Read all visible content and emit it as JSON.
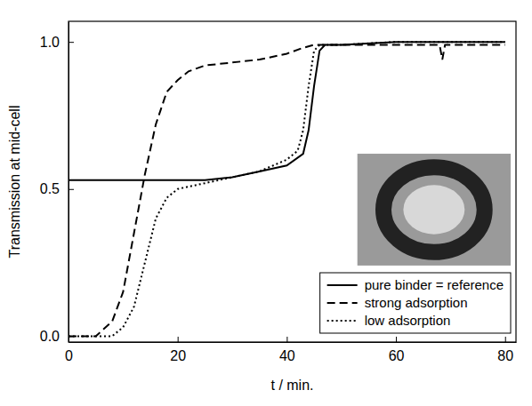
{
  "chart_data": {
    "type": "line",
    "x_label": "t / min.",
    "y_label": "Transmission at mid-cell",
    "xlim": [
      0,
      82
    ],
    "ylim": [
      -0.02,
      1.07
    ],
    "xticks": [
      0,
      20,
      40,
      60,
      80
    ],
    "yticks": [
      {
        "value": 0,
        "label": "0.0"
      },
      {
        "value": 0.5,
        "label": "0.5"
      },
      {
        "value": 1,
        "label": "1.0"
      }
    ],
    "grid": false,
    "legend": "lower right",
    "series": [
      {
        "name": "pure binder = reference",
        "color": "#000000",
        "line_style": "solid",
        "x": [
          0,
          10,
          20,
          25,
          30,
          35,
          40,
          43,
          44,
          45,
          46,
          47,
          50,
          60,
          70,
          80
        ],
        "values": [
          0.53,
          0.53,
          0.53,
          0.53,
          0.54,
          0.56,
          0.58,
          0.62,
          0.7,
          0.85,
          0.97,
          0.99,
          0.99,
          1.0,
          1.0,
          1.0
        ]
      },
      {
        "name": "strong adsorption",
        "color": "#000000",
        "line_style": "dashed",
        "x": [
          0,
          5,
          8,
          10,
          12,
          14,
          16,
          18,
          20,
          22,
          25,
          30,
          35,
          40,
          43,
          45,
          50,
          60,
          68,
          68.5,
          69,
          80
        ],
        "values": [
          0,
          0,
          0.05,
          0.15,
          0.35,
          0.55,
          0.72,
          0.83,
          0.87,
          0.9,
          0.92,
          0.93,
          0.94,
          0.96,
          0.98,
          0.99,
          0.99,
          0.99,
          0.99,
          0.94,
          0.99,
          0.99
        ]
      },
      {
        "name": "low adsorption",
        "color": "#000000",
        "line_style": "dotted",
        "x": [
          0,
          8,
          10,
          12,
          14,
          16,
          18,
          20,
          25,
          30,
          35,
          40,
          42,
          43,
          44,
          45,
          46,
          50,
          60,
          80
        ],
        "values": [
          0,
          0,
          0.03,
          0.1,
          0.25,
          0.4,
          0.47,
          0.5,
          0.52,
          0.54,
          0.56,
          0.6,
          0.63,
          0.7,
          0.85,
          0.97,
          0.99,
          0.99,
          1.0,
          1.0
        ]
      }
    ]
  }
}
